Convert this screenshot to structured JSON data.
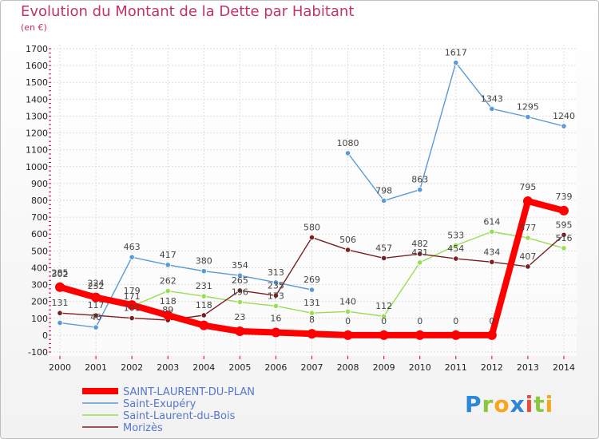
{
  "header": {
    "title": "Evolution du Montant de la Dette par Habitant",
    "subtitle": "(en €)"
  },
  "logo": {
    "letters": [
      {
        "ch": "P",
        "color": "#2e86d6"
      },
      {
        "ch": "r",
        "color": "#8cc63f"
      },
      {
        "ch": "o",
        "color": "#f7a51c"
      },
      {
        "ch": "x",
        "color": "#2e86d6"
      },
      {
        "ch": "i",
        "color": "#e94b3c"
      },
      {
        "ch": "t",
        "color": "#8cc63f"
      },
      {
        "ch": "i",
        "color": "#f7a51c"
      }
    ]
  },
  "chart_data": {
    "type": "line",
    "title": "Evolution du Montant de la Dette par Habitant",
    "subtitle": "(en €)",
    "x": [
      "2000",
      "2001",
      "2002",
      "2003",
      "2004",
      "2005",
      "2006",
      "2007",
      "2008",
      "2009",
      "2010",
      "2011",
      "2012",
      "2013",
      "2014"
    ],
    "ylim": [
      -100,
      1700
    ],
    "yticks": [
      -100,
      0,
      100,
      200,
      300,
      400,
      500,
      600,
      700,
      800,
      900,
      1000,
      1100,
      1200,
      1300,
      1400,
      1500,
      1600,
      1700
    ],
    "grid": true,
    "legend_position": "bottom-left",
    "series": [
      {
        "name": "SAINT-LAURENT-DU-PLAN",
        "color": "#ff0000",
        "highlight": true,
        "values": [
          285,
          224,
          179,
          118,
          58,
          23,
          16,
          8,
          0,
          0,
          0,
          0,
          0,
          795,
          739
        ],
        "labels": [
          "285",
          "224",
          "179",
          "118",
          "",
          "23",
          "16",
          "8",
          "0",
          "0",
          "0",
          "0",
          "0",
          "795",
          "739"
        ]
      },
      {
        "name": "Saint-Exupéry",
        "color": "#5b9bd5",
        "highlight": false,
        "values": [
          73,
          46,
          463,
          417,
          380,
          354,
          313,
          269,
          null,
          null,
          null,
          null,
          null,
          null,
          null
        ],
        "values2": [
          null,
          null,
          null,
          null,
          null,
          null,
          null,
          null,
          1080,
          798,
          863,
          1617,
          1343,
          1295,
          1240
        ],
        "labels": [
          "",
          "46",
          "463",
          "417",
          "380",
          "354",
          "313",
          "269",
          "1080",
          "798",
          "863",
          "1617",
          "1343",
          "1295",
          "1240"
        ]
      },
      {
        "name": "Saint-Laurent-du-Bois",
        "color": "#99dd55",
        "highlight": false,
        "values": [
          302,
          232,
          171,
          262,
          231,
          196,
          173,
          131,
          140,
          112,
          431,
          533,
          614,
          577,
          516
        ],
        "labels": [
          "302",
          "232",
          "171",
          "262",
          "231",
          "196",
          "173",
          "131",
          "140",
          "112",
          "431",
          "533",
          "614",
          "577",
          "516"
        ]
      },
      {
        "name": "Morizès",
        "color": "#7a1f1f",
        "highlight": false,
        "values": [
          131,
          117,
          101,
          89,
          118,
          265,
          235,
          580,
          506,
          457,
          482,
          454,
          434,
          407,
          595
        ],
        "labels": [
          "131",
          "117",
          "101",
          "89",
          "118",
          "265",
          "235",
          "580",
          "506",
          "457",
          "482",
          "454",
          "434",
          "407",
          "595"
        ]
      }
    ]
  }
}
